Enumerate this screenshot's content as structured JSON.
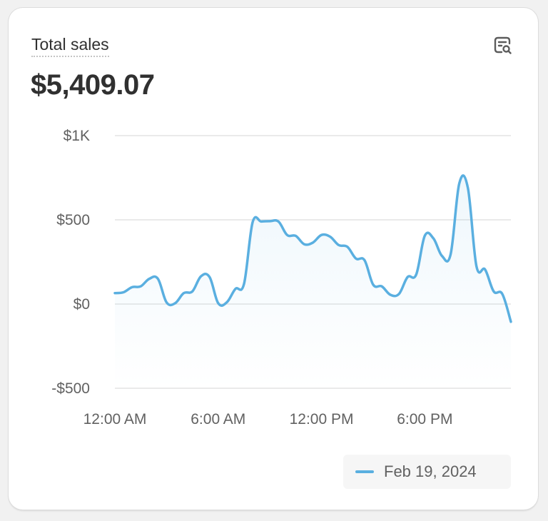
{
  "card": {
    "title": "Total sales",
    "total": "$5,409.07"
  },
  "colors": {
    "series": "#5aafe0",
    "grid": "#e3e3e3",
    "text": "#303030",
    "muted": "#616161"
  },
  "icons": {
    "action": "report-search-icon"
  },
  "chart_data": {
    "type": "line",
    "title": "Total sales",
    "xlabel": "",
    "ylabel": "",
    "ylim": [
      -500,
      1000
    ],
    "yticks": [
      {
        "value": 1000,
        "label": "$1K"
      },
      {
        "value": 500,
        "label": "$500"
      },
      {
        "value": 0,
        "label": "$0"
      },
      {
        "value": -500,
        "label": "-$500"
      }
    ],
    "xlim": [
      0,
      23
    ],
    "xticks": [
      {
        "value": 0,
        "label": "12:00 AM"
      },
      {
        "value": 6,
        "label": "6:00 AM"
      },
      {
        "value": 12,
        "label": "12:00 PM"
      },
      {
        "value": 18,
        "label": "6:00 PM"
      }
    ],
    "grid": true,
    "legend_position": "bottom-right",
    "series": [
      {
        "name": "Feb 19, 2024",
        "x": [
          0,
          0.5,
          1,
          1.5,
          2,
          2.5,
          3,
          3.5,
          4,
          4.5,
          5,
          5.5,
          6,
          6.5,
          7,
          7.5,
          8,
          8.5,
          9,
          9.5,
          10,
          10.5,
          11,
          11.5,
          12,
          12.5,
          13,
          13.5,
          14,
          14.5,
          15,
          15.5,
          16,
          16.5,
          17,
          17.5,
          18,
          18.5,
          19,
          19.5,
          20,
          20.5,
          21,
          21.5,
          22,
          22.5,
          23
        ],
        "values": [
          65,
          70,
          100,
          105,
          150,
          150,
          10,
          5,
          65,
          75,
          165,
          160,
          5,
          10,
          90,
          120,
          485,
          490,
          492,
          490,
          410,
          405,
          355,
          365,
          410,
          400,
          350,
          340,
          270,
          260,
          115,
          105,
          55,
          60,
          160,
          175,
          405,
          390,
          285,
          295,
          715,
          690,
          225,
          205,
          75,
          60,
          -105
        ]
      }
    ]
  }
}
